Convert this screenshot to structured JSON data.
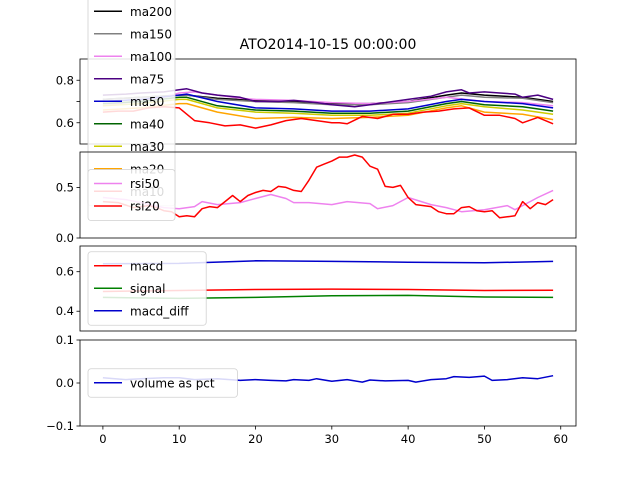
{
  "chart_data": {
    "type": "line",
    "title": "ATO2014-10-15 00:00:00",
    "x_ticks": [
      0,
      10,
      20,
      30,
      40,
      50,
      60
    ],
    "xlim": [
      -3,
      62
    ],
    "panels": [
      {
        "id": "ma",
        "ylim": [
          0.5,
          0.9
        ],
        "y_ticks": [
          0.6,
          0.7,
          0.8
        ],
        "y_tick_labels": [
          "0.6",
          "",
          "0.8"
        ],
        "legend_position": "left",
        "series": [
          {
            "name": "ma200",
            "color": "#000000",
            "x": [
              0,
              5,
              10,
              11,
              15,
              20,
              25,
              30,
              35,
              40,
              45,
              47,
              50,
              55,
              59
            ],
            "y": [
              0.71,
              0.72,
              0.73,
              0.73,
              0.715,
              0.705,
              0.7,
              0.69,
              0.69,
              0.7,
              0.73,
              0.74,
              0.73,
              0.72,
              0.7
            ]
          },
          {
            "name": "ma150",
            "color": "#808080",
            "x": [
              0,
              5,
              10,
              11,
              15,
              20,
              25,
              30,
              35,
              40,
              45,
              47,
              50,
              55,
              59
            ],
            "y": [
              0.71,
              0.72,
              0.73,
              0.73,
              0.71,
              0.7,
              0.695,
              0.685,
              0.685,
              0.695,
              0.72,
              0.73,
              0.72,
              0.715,
              0.695
            ]
          },
          {
            "name": "ma100",
            "color": "#ee82ee",
            "x": [
              0,
              3,
              5,
              8,
              10,
              12,
              15,
              18,
              20,
              25,
              30,
              35,
              40,
              45,
              50,
              55,
              59
            ],
            "y": [
              0.68,
              0.695,
              0.7,
              0.72,
              0.74,
              0.745,
              0.73,
              0.715,
              0.71,
              0.705,
              0.695,
              0.69,
              0.7,
              0.72,
              0.7,
              0.695,
              0.68
            ]
          },
          {
            "name": "ma75",
            "color": "#4b0082",
            "x": [
              0,
              3,
              5,
              8,
              10,
              11,
              13,
              15,
              18,
              20,
              23,
              25,
              28,
              30,
              33,
              35,
              38,
              40,
              43,
              45,
              47,
              48,
              50,
              52,
              54,
              55,
              57,
              59
            ],
            "y": [
              0.73,
              0.735,
              0.74,
              0.745,
              0.755,
              0.76,
              0.74,
              0.73,
              0.72,
              0.7,
              0.7,
              0.705,
              0.695,
              0.685,
              0.675,
              0.685,
              0.7,
              0.71,
              0.725,
              0.745,
              0.755,
              0.74,
              0.745,
              0.74,
              0.735,
              0.72,
              0.73,
              0.71
            ]
          },
          {
            "name": "ma50",
            "color": "#0000cc",
            "x": [
              0,
              5,
              10,
              11,
              15,
              20,
              25,
              30,
              35,
              40,
              45,
              47,
              50,
              55,
              59
            ],
            "y": [
              0.7,
              0.71,
              0.73,
              0.735,
              0.7,
              0.67,
              0.665,
              0.655,
              0.655,
              0.665,
              0.7,
              0.71,
              0.7,
              0.69,
              0.67
            ]
          },
          {
            "name": "ma40",
            "color": "#006400",
            "x": [
              0,
              5,
              10,
              11,
              15,
              20,
              25,
              30,
              35,
              40,
              45,
              47,
              50,
              55,
              59
            ],
            "y": [
              0.69,
              0.7,
              0.72,
              0.72,
              0.68,
              0.66,
              0.655,
              0.645,
              0.645,
              0.655,
              0.69,
              0.7,
              0.685,
              0.675,
              0.655
            ]
          },
          {
            "name": "ma30",
            "color": "#cccc00",
            "x": [
              0,
              5,
              10,
              11,
              15,
              20,
              25,
              30,
              35,
              40,
              45,
              47,
              50,
              55,
              59
            ],
            "y": [
              0.68,
              0.69,
              0.71,
              0.71,
              0.67,
              0.65,
              0.645,
              0.635,
              0.635,
              0.645,
              0.68,
              0.69,
              0.675,
              0.66,
              0.64
            ]
          },
          {
            "name": "ma20",
            "color": "#ffa500",
            "x": [
              0,
              5,
              10,
              11,
              15,
              20,
              25,
              30,
              35,
              40,
              45,
              47,
              50,
              55,
              59
            ],
            "y": [
              0.66,
              0.67,
              0.69,
              0.69,
              0.65,
              0.62,
              0.625,
              0.62,
              0.625,
              0.635,
              0.67,
              0.68,
              0.65,
              0.64,
              0.615
            ]
          },
          {
            "name": "ma10",
            "color": "#ff0000",
            "x": [
              0,
              2,
              4,
              6,
              8,
              10,
              12,
              14,
              16,
              18,
              20,
              22,
              24,
              26,
              28,
              30,
              31,
              32,
              34,
              36,
              38,
              40,
              42,
              44,
              46,
              48,
              50,
              52,
              54,
              55,
              57,
              59
            ],
            "y": [
              0.65,
              0.655,
              0.655,
              0.67,
              0.675,
              0.67,
              0.61,
              0.6,
              0.585,
              0.59,
              0.575,
              0.59,
              0.61,
              0.62,
              0.61,
              0.6,
              0.6,
              0.595,
              0.63,
              0.62,
              0.64,
              0.64,
              0.65,
              0.655,
              0.665,
              0.67,
              0.635,
              0.635,
              0.62,
              0.6,
              0.625,
              0.595
            ]
          }
        ]
      },
      {
        "id": "rsi",
        "ylim": [
          0.0,
          0.85
        ],
        "y_ticks": [
          0.0,
          0.5
        ],
        "y_tick_labels": [
          "0.0",
          "0.5"
        ],
        "legend_position": "left",
        "series": [
          {
            "name": "rsi50",
            "color": "#ee82ee",
            "x": [
              0,
              3,
              5,
              8,
              10,
              12,
              13,
              15,
              18,
              20,
              22,
              24,
              25,
              27,
              30,
              32,
              35,
              36,
              38,
              40,
              43,
              45,
              47,
              50,
              53,
              54,
              55,
              57,
              59
            ],
            "y": [
              0.4,
              0.38,
              0.35,
              0.3,
              0.29,
              0.31,
              0.36,
              0.33,
              0.35,
              0.39,
              0.43,
              0.39,
              0.35,
              0.35,
              0.33,
              0.36,
              0.34,
              0.29,
              0.32,
              0.4,
              0.33,
              0.3,
              0.26,
              0.28,
              0.32,
              0.28,
              0.32,
              0.4,
              0.47
            ]
          },
          {
            "name": "rsi20",
            "color": "#ff0000",
            "x": [
              0,
              2,
              4,
              6,
              7,
              8,
              9,
              10,
              11,
              12,
              13,
              14,
              15,
              16,
              17,
              18,
              19,
              20,
              21,
              22,
              23,
              24,
              25,
              26,
              27,
              28,
              29,
              30,
              31,
              32,
              33,
              34,
              35,
              36,
              37,
              38,
              39,
              40,
              41,
              42,
              43,
              44,
              45,
              46,
              47,
              48,
              49,
              50,
              51,
              52,
              53,
              54,
              55,
              56,
              57,
              58,
              59
            ],
            "y": [
              0.36,
              0.35,
              0.3,
              0.32,
              0.3,
              0.27,
              0.26,
              0.21,
              0.22,
              0.21,
              0.29,
              0.31,
              0.3,
              0.36,
              0.42,
              0.36,
              0.42,
              0.45,
              0.47,
              0.46,
              0.51,
              0.5,
              0.47,
              0.46,
              0.57,
              0.7,
              0.73,
              0.76,
              0.8,
              0.8,
              0.82,
              0.8,
              0.71,
              0.68,
              0.51,
              0.5,
              0.52,
              0.4,
              0.33,
              0.32,
              0.31,
              0.26,
              0.24,
              0.24,
              0.3,
              0.31,
              0.27,
              0.26,
              0.27,
              0.2,
              0.21,
              0.22,
              0.36,
              0.29,
              0.35,
              0.33,
              0.38
            ]
          }
        ]
      },
      {
        "id": "macd",
        "ylim": [
          0.3,
          0.73
        ],
        "y_ticks": [
          0.4,
          0.6
        ],
        "y_tick_labels": [
          "0.4",
          "0.6"
        ],
        "legend_position": "left",
        "series": [
          {
            "name": "macd",
            "color": "#ff0000",
            "x": [
              0,
              10,
              20,
              30,
              40,
              50,
              59
            ],
            "y": [
              0.5,
              0.505,
              0.51,
              0.512,
              0.51,
              0.505,
              0.506
            ]
          },
          {
            "name": "signal",
            "color": "#008000",
            "x": [
              0,
              10,
              20,
              30,
              40,
              50,
              59
            ],
            "y": [
              0.47,
              0.465,
              0.47,
              0.478,
              0.48,
              0.472,
              0.47
            ]
          },
          {
            "name": "macd_diff",
            "color": "#0000cc",
            "x": [
              0,
              10,
              20,
              30,
              40,
              50,
              59
            ],
            "y": [
              0.64,
              0.642,
              0.655,
              0.652,
              0.648,
              0.645,
              0.652
            ]
          }
        ]
      },
      {
        "id": "volume",
        "ylim": [
          -0.1,
          0.1
        ],
        "y_ticks": [
          -0.1,
          0.0,
          0.1
        ],
        "y_tick_labels": [
          "−0.1",
          "0.0",
          "0.1"
        ],
        "legend_position": "left",
        "series": [
          {
            "name": "volume as pct",
            "color": "#0000cc",
            "x": [
              0,
              3,
              5,
              8,
              10,
              12,
              15,
              18,
              20,
              22,
              24,
              25,
              27,
              28,
              30,
              32,
              34,
              35,
              37,
              40,
              41,
              43,
              45,
              46,
              48,
              50,
              51,
              53,
              55,
              57,
              59
            ],
            "y": [
              0.012,
              0.008,
              0.01,
              0.012,
              0.012,
              0.008,
              0.01,
              0.006,
              0.008,
              0.006,
              0.005,
              0.008,
              0.006,
              0.01,
              0.004,
              0.008,
              0.002,
              0.007,
              0.005,
              0.006,
              0.002,
              0.008,
              0.01,
              0.015,
              0.013,
              0.016,
              0.006,
              0.008,
              0.012,
              0.01,
              0.017
            ]
          }
        ]
      }
    ]
  }
}
